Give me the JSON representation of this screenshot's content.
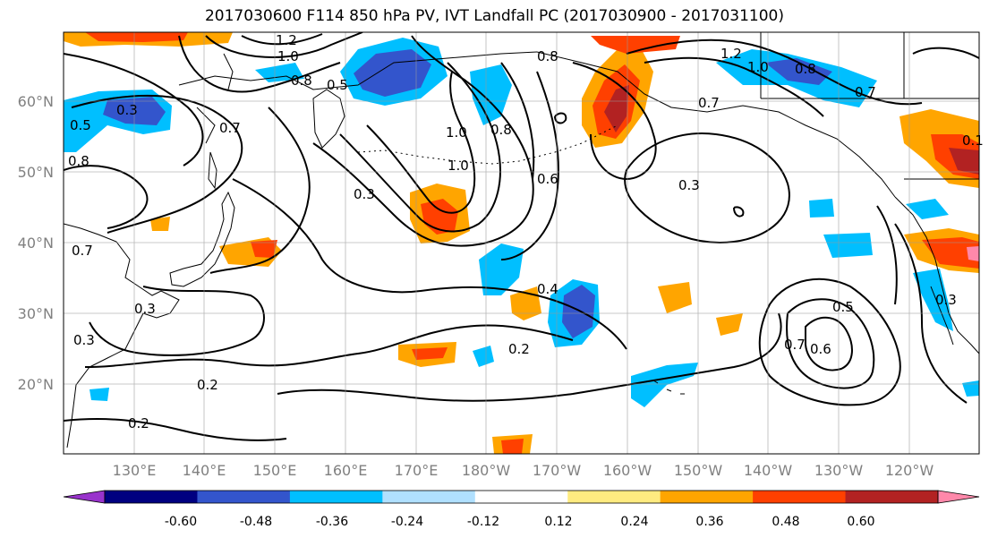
{
  "title": "2017030600 F114 850 hPa PV, IVT Landfall PC (2017030900 - 2017031100)",
  "lat_labels": [
    "60°N",
    "50°N",
    "40°N",
    "30°N",
    "20°N"
  ],
  "lon_labels": [
    "130°E",
    "140°E",
    "150°E",
    "160°E",
    "170°E",
    "180°W",
    "170°W",
    "160°W",
    "150°W",
    "140°W",
    "130°W",
    "120°W"
  ],
  "colorbar": {
    "colors": [
      "#9933cc",
      "#000080",
      "#3355cc",
      "#00bfff",
      "#b0e0ff",
      "#ffffff",
      "#ffeb80",
      "#ffa500",
      "#ff4000",
      "#b22222",
      "#ff88aa"
    ],
    "tick_labels": [
      "-0.60",
      "-0.48",
      "-0.36",
      "-0.24",
      "-0.12",
      "0.12",
      "0.24",
      "0.36",
      "0.48",
      "0.60"
    ]
  },
  "contour_labels": [
    "1.2",
    "1.0",
    "0.8",
    "0.5",
    "0.3",
    "0.7",
    "1.0",
    "0.8",
    "1.0",
    "0.6",
    "0.3",
    "0.8",
    "1.2",
    "1.0",
    "0.8",
    "0.7",
    "0.7",
    "0.3",
    "0.4",
    "0.2",
    "0.2",
    "0.2",
    "0.7",
    "0.6",
    "0.5",
    "0.3",
    "0.3",
    "0.5",
    "0.8",
    "0.7",
    "0.3",
    "0.1"
  ]
}
